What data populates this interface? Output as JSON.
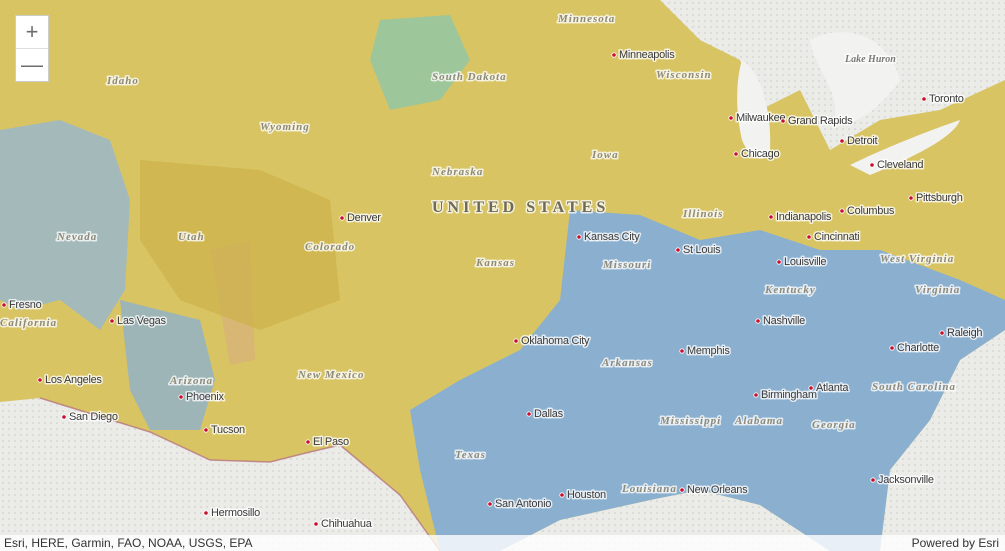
{
  "zoom": {
    "in": "+",
    "out": "—"
  },
  "map": {
    "country": "UNITED STATES",
    "water": [
      "Lake Huron"
    ],
    "states": [
      "Minnesota",
      "Wisconsin",
      "Idaho",
      "South Dakota",
      "Wyoming",
      "Iowa",
      "Nebraska",
      "Nevada",
      "Utah",
      "Colorado",
      "Kansas",
      "Illinois",
      "Missouri",
      "Kentucky",
      "West Virginia",
      "Virginia",
      "California",
      "Arizona",
      "New Mexico",
      "Arkansas",
      "South Carolina",
      "Mississippi",
      "Alabama",
      "Georgia",
      "Texas",
      "Louisiana"
    ],
    "cities": [
      "Minneapolis",
      "Toronto",
      "Milwaukee",
      "Grand Rapids",
      "Detroit",
      "Chicago",
      "Cleveland",
      "Denver",
      "Indianapolis",
      "Columbus",
      "Pittsburgh",
      "Kansas City",
      "Cincinnati",
      "St Louis",
      "Louisville",
      "Fresno",
      "Las Vegas",
      "Nashville",
      "Raleigh",
      "Oklahoma City",
      "Memphis",
      "Charlotte",
      "Los Angeles",
      "Phoenix",
      "Birmingham",
      "Atlanta",
      "San Diego",
      "Tucson",
      "El Paso",
      "Dallas",
      "Jacksonville",
      "Houston",
      "San Antonio",
      "New Orleans",
      "Hermosillo",
      "Chihuahua"
    ]
  },
  "attribution": {
    "sources": "Esri, HERE, Garmin, FAO, NOAA, USGS, EPA",
    "powered": "Powered by Esri"
  }
}
